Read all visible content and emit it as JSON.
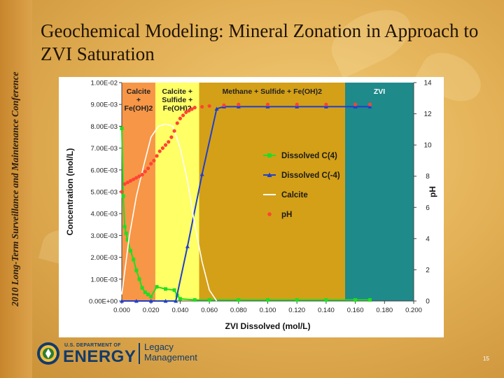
{
  "side_label": "2010 Long-Term Surveillance and Maintenance Conference",
  "title": "Geochemical Modeling: Mineral Zonation in Approach to ZVI Saturation",
  "footer": {
    "org_line": "U.S. DEPARTMENT OF",
    "org_name": "ENERGY",
    "office_line1": "Legacy",
    "office_line2": "Management",
    "page_number": "15"
  },
  "colors": {
    "zone_orange": "#f79646",
    "zone_yellow": "#ffff66",
    "zone_gold": "#d4a017",
    "zone_teal": "#1f8a8a",
    "dissolved_c4": "#22dd22",
    "dissolved_cm4": "#1f3fcf",
    "calcite": "#ffffff",
    "ph": "#ff4433"
  },
  "chart_data": {
    "type": "line",
    "xlabel": "ZVI Dissolved (mol/L)",
    "ylabel": "Concentration (mol/L)",
    "y2label": "pH",
    "xlim": [
      0,
      0.2
    ],
    "ylim": [
      0,
      0.01
    ],
    "y2lim": [
      0,
      14
    ],
    "x_ticks": [
      "0.000",
      "0.020",
      "0.040",
      "0.060",
      "0.080",
      "0.100",
      "0.120",
      "0.140",
      "0.160",
      "0.180",
      "0.200"
    ],
    "y_ticks": [
      "0.00E+00",
      "1.00E-03",
      "2.00E-03",
      "3.00E-03",
      "4.00E-03",
      "5.00E-03",
      "6.00E-03",
      "7.00E-03",
      "8.00E-03",
      "9.00E-03",
      "1.00E-02"
    ],
    "y2_ticks": [
      "0",
      "2",
      "4",
      "6",
      "8",
      "10",
      "12",
      "14"
    ],
    "zones": [
      {
        "x0": 0.0,
        "x1": 0.023,
        "color": "#f79646",
        "label": [
          "Calcite",
          "+",
          "Fe(OH)2"
        ]
      },
      {
        "x0": 0.023,
        "x1": 0.053,
        "color": "#ffff66",
        "label": [
          "Calcite +",
          "Sulfide +",
          "Fe(OH)2"
        ]
      },
      {
        "x0": 0.053,
        "x1": 0.153,
        "color": "#d4a017",
        "label": [
          "Methane + Sulfide + Fe(OH)2"
        ]
      },
      {
        "x0": 0.153,
        "x1": 0.2,
        "color": "#1f8a8a",
        "label": [
          "ZVI"
        ]
      }
    ],
    "legend_position": "center-right",
    "grid": false,
    "series": [
      {
        "name": "Dissolved C(4)",
        "axis": "left",
        "color": "#22dd22",
        "marker": "square",
        "x": [
          0,
          0.001,
          0.002,
          0.003,
          0.004,
          0.006,
          0.008,
          0.01,
          0.012,
          0.014,
          0.016,
          0.018,
          0.02,
          0.024,
          0.03,
          0.036,
          0.038,
          0.04,
          0.05,
          0.06,
          0.08,
          0.1,
          0.12,
          0.14,
          0.16,
          0.17
        ],
        "y": [
          0.0079,
          0.0048,
          0.0034,
          0.0031,
          0.0028,
          0.0023,
          0.0019,
          0.0014,
          0.001,
          0.0006,
          0.0004,
          0.0003,
          0.0002,
          0.00065,
          0.00055,
          0.0005,
          0.00025,
          0.0001,
          5e-05,
          5e-05,
          5e-05,
          5e-05,
          5e-05,
          5e-05,
          5e-05,
          5e-05
        ]
      },
      {
        "name": "Dissolved C(-4)",
        "axis": "left",
        "color": "#1f3fcf",
        "marker": "triangle",
        "x": [
          0,
          0.01,
          0.02,
          0.03,
          0.037,
          0.045,
          0.055,
          0.065,
          0.07,
          0.08,
          0.1,
          0.12,
          0.14,
          0.16,
          0.17
        ],
        "y": [
          0,
          0,
          0,
          0,
          0,
          0.0025,
          0.0058,
          0.0088,
          0.0089,
          0.0089,
          0.0089,
          0.0089,
          0.0089,
          0.0089,
          0.0089
        ]
      },
      {
        "name": "Calcite",
        "axis": "left",
        "color": "#ffffff",
        "marker": "none",
        "x": [
          0,
          0.005,
          0.01,
          0.015,
          0.02,
          0.025,
          0.03,
          0.035,
          0.04,
          0.045,
          0.05,
          0.055,
          0.06,
          0.065
        ],
        "y": [
          0.0003,
          0.0029,
          0.0048,
          0.0062,
          0.0075,
          0.008,
          0.0081,
          0.008,
          0.007,
          0.0055,
          0.0035,
          0.0018,
          0.0005,
          0.0
        ]
      },
      {
        "name": "pH",
        "axis": "right",
        "color": "#ff4433",
        "marker": "circle",
        "x": [
          0,
          0.002,
          0.004,
          0.006,
          0.008,
          0.01,
          0.012,
          0.014,
          0.016,
          0.018,
          0.02,
          0.022,
          0.024,
          0.026,
          0.028,
          0.03,
          0.032,
          0.034,
          0.036,
          0.038,
          0.04,
          0.042,
          0.044,
          0.046,
          0.048,
          0.05,
          0.055,
          0.06,
          0.07,
          0.08,
          0.1,
          0.12,
          0.14,
          0.16,
          0.17
        ],
        "y": [
          7.0,
          7.5,
          7.6,
          7.7,
          7.8,
          7.9,
          8.0,
          8.1,
          8.3,
          8.5,
          8.8,
          9.0,
          9.3,
          9.6,
          9.8,
          10.0,
          10.2,
          10.5,
          10.9,
          11.4,
          11.7,
          11.9,
          12.1,
          12.2,
          12.3,
          12.4,
          12.45,
          12.5,
          12.55,
          12.6,
          12.6,
          12.6,
          12.6,
          12.6,
          12.6
        ]
      }
    ]
  }
}
